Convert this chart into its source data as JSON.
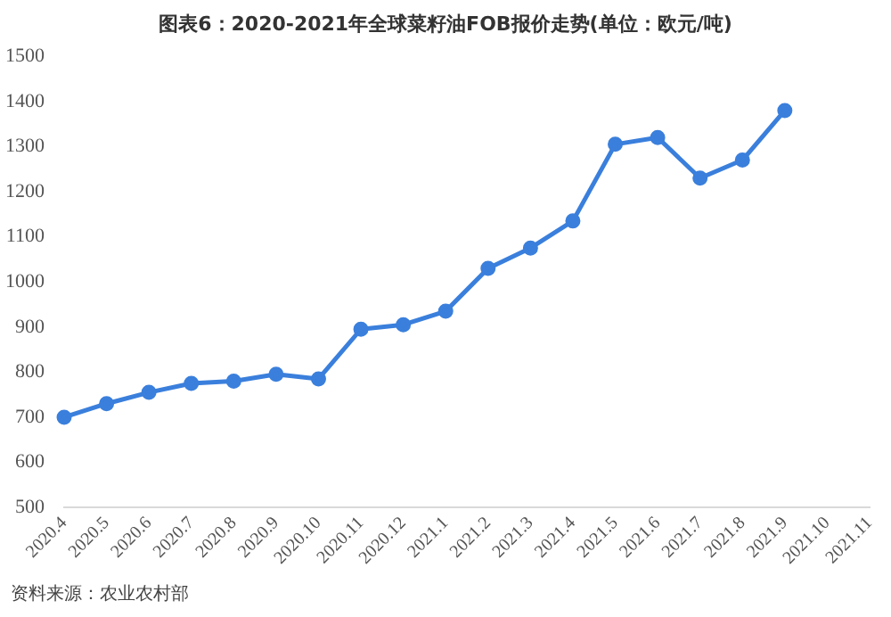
{
  "chart_data": {
    "type": "line",
    "title": "图表6：2020-2021年全球菜籽油FOB报价走势(单位：欧元/吨)",
    "categories": [
      "2020.4",
      "2020.5",
      "2020.6",
      "2020.7",
      "2020.8",
      "2020.9",
      "2020.10",
      "2020.11",
      "2020.12",
      "2021.1",
      "2021.2",
      "2021.3",
      "2021.4",
      "2021.5",
      "2021.6",
      "2021.7",
      "2021.8",
      "2021.9",
      "2021.10",
      "2021.11"
    ],
    "series": [
      {
        "color": "#3a7fdc",
        "values": [
          700,
          730,
          755,
          775,
          780,
          795,
          785,
          895,
          905,
          935,
          1030,
          1075,
          1135,
          1305,
          1320,
          1230,
          1270,
          1380,
          null,
          null
        ]
      }
    ],
    "ylim": [
      500,
      1500
    ],
    "yticks": [
      500,
      600,
      700,
      800,
      900,
      1000,
      1100,
      1200,
      1300,
      1400,
      1500
    ],
    "grid": false,
    "legend": false,
    "marker": "circle",
    "line_style": "solid",
    "annotations": [
      "资料来源：农业农村部"
    ]
  }
}
